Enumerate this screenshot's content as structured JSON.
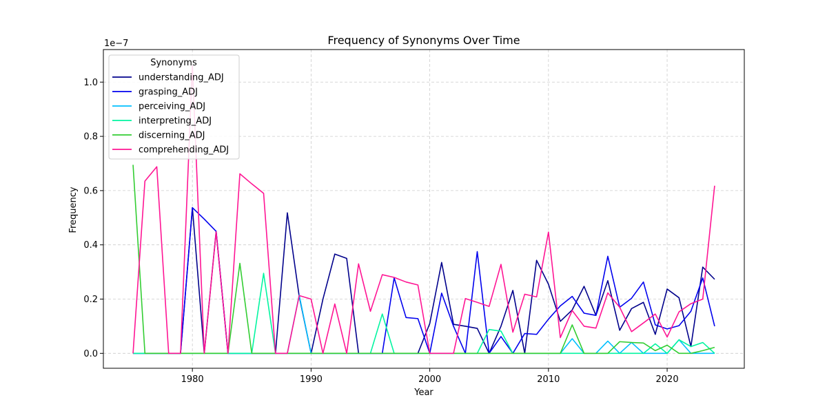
{
  "chart_data": {
    "type": "line",
    "title": "Frequency of Synonyms Over Time",
    "xlabel": "Year",
    "ylabel": "Frequency",
    "offset_label": "1e−7",
    "xlim": [
      1972.5,
      2026.5
    ],
    "ylim": [
      -0.055,
      1.12
    ],
    "xticks": [
      1980,
      1990,
      2000,
      2010,
      2020
    ],
    "yticks": [
      0.0,
      0.2,
      0.4,
      0.6,
      0.8,
      1.0
    ],
    "ytick_labels": [
      "0.0",
      "0.2",
      "0.4",
      "0.6",
      "0.8",
      "1.0"
    ],
    "grid": true,
    "legend": {
      "title": "Synonyms",
      "placement": "upper-left"
    },
    "x": [
      1975,
      1976,
      1977,
      1978,
      1979,
      1980,
      1981,
      1982,
      1983,
      1984,
      1985,
      1986,
      1987,
      1988,
      1989,
      1990,
      1991,
      1992,
      1993,
      1994,
      1995,
      1996,
      1997,
      1998,
      1999,
      2000,
      2001,
      2002,
      2003,
      2004,
      2005,
      2006,
      2007,
      2008,
      2009,
      2010,
      2011,
      2012,
      2013,
      2014,
      2015,
      2016,
      2017,
      2018,
      2019,
      2020,
      2021,
      2022,
      2023,
      2024
    ],
    "series": [
      {
        "name": "understanding_ADJ",
        "color": "#00008b",
        "values": [
          0,
          0,
          0,
          0,
          0,
          0.537,
          0,
          0.45,
          0,
          0,
          0,
          0,
          0,
          0.518,
          0.21,
          0,
          0.2,
          0.366,
          0.35,
          0,
          0,
          0,
          0,
          0,
          0,
          0.11,
          0.335,
          0.107,
          0.1,
          0.092,
          0,
          0.1,
          0.232,
          0,
          0.343,
          0.255,
          0.118,
          0.16,
          0.247,
          0.14,
          0.268,
          0.085,
          0.165,
          0.188,
          0.07,
          0.237,
          0.205,
          0.025,
          0.318,
          0.273
        ]
      },
      {
        "name": "grasping_ADJ",
        "color": "#0000ee",
        "values": [
          0,
          0,
          0,
          0,
          0,
          0.537,
          0.495,
          0.45,
          0,
          0,
          0,
          0,
          0,
          0,
          0,
          0,
          0,
          0,
          0,
          0,
          0,
          0,
          0.278,
          0.132,
          0.128,
          0,
          0.222,
          0.1,
          0,
          0.375,
          0,
          0.062,
          0,
          0.073,
          0.07,
          0.126,
          0.175,
          0.21,
          0.148,
          0.14,
          0.358,
          0.17,
          0.203,
          0.263,
          0.105,
          0.09,
          0.102,
          0.155,
          0.278,
          0.1
        ]
      },
      {
        "name": "perceiving_ADJ",
        "color": "#00bfff",
        "values": [
          0,
          0,
          0,
          0,
          0,
          0,
          0,
          0,
          0,
          0,
          0,
          0,
          0,
          0,
          0.215,
          0,
          0,
          0,
          0,
          0,
          0,
          0,
          0,
          0,
          0,
          0,
          0,
          0,
          0,
          0,
          0,
          0,
          0,
          0,
          0,
          0,
          0,
          0.054,
          0,
          0,
          0.045,
          0,
          0.04,
          0,
          0,
          0,
          0.05,
          0,
          0,
          0
        ]
      },
      {
        "name": "interpreting_ADJ",
        "color": "#00f5a0",
        "values": [
          0,
          0,
          0,
          0,
          0,
          0,
          0,
          0,
          0,
          0,
          0,
          0.295,
          0,
          0,
          0,
          0,
          0,
          0,
          0,
          0,
          0,
          0.145,
          0,
          0,
          0,
          0,
          0,
          0,
          0,
          0,
          0.088,
          0.082,
          0,
          0,
          0,
          0,
          0,
          0,
          0,
          0,
          0,
          0,
          0,
          0,
          0.035,
          0,
          0.05,
          0.025,
          0.04,
          0
        ]
      },
      {
        "name": "discerning_ADJ",
        "color": "#32cd32",
        "values": [
          0.695,
          0,
          0,
          0,
          0,
          0,
          0,
          0,
          0,
          0.332,
          0,
          0,
          0,
          0,
          0,
          0,
          0,
          0,
          0,
          0,
          0,
          0,
          0,
          0,
          0,
          0,
          0,
          0,
          0,
          0,
          0,
          0,
          0,
          0,
          0,
          0,
          0,
          0.105,
          0,
          0,
          0,
          0.043,
          0.04,
          0.038,
          0.01,
          0.03,
          0,
          0,
          0.01,
          0.022
        ]
      },
      {
        "name": "comprehending_ADJ",
        "color": "#ff1493",
        "values": [
          0,
          0.635,
          0.688,
          0,
          0,
          1.06,
          0,
          0.448,
          0,
          0.662,
          0.625,
          0.59,
          0,
          0,
          0.213,
          0.2,
          0,
          0.182,
          0,
          0.33,
          0.155,
          0.29,
          0.28,
          0.263,
          0.252,
          0,
          0,
          0,
          0.202,
          0.188,
          0.173,
          0.328,
          0.078,
          0.218,
          0.208,
          0.447,
          0.058,
          0.158,
          0.1,
          0.093,
          0.223,
          0.17,
          0.08,
          0.112,
          0.145,
          0.06,
          0.153,
          0.183,
          0.2,
          0.618
        ]
      }
    ]
  }
}
